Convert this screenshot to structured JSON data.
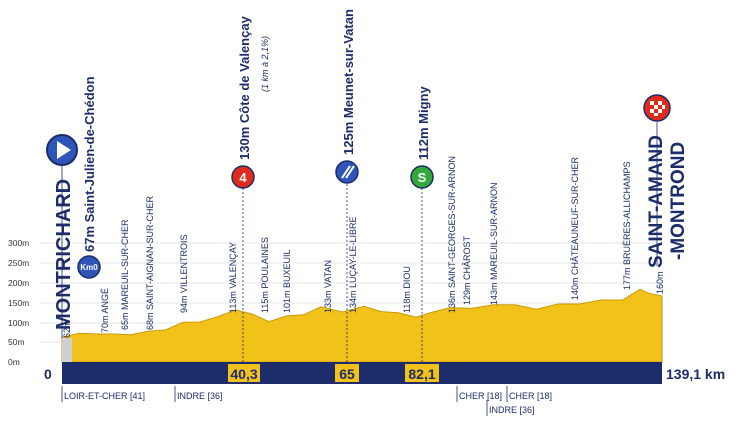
{
  "altitude_axis": [
    "300m",
    "250m",
    "200m",
    "150m",
    "100m",
    "50m",
    "0m"
  ],
  "start": {
    "name": "MONTRICHARD",
    "altitude": "62m",
    "km": "0"
  },
  "finish": {
    "name_line1": "SAINT-AMAND",
    "name_line2": "-MONTROND",
    "altitude": "160m",
    "km": "139,1 km"
  },
  "km0": {
    "badge": "Km0",
    "label": "67m Saint-Julien-de-Chédon"
  },
  "climb": {
    "badge": "4",
    "name": "130m Côte de Valençay",
    "detail": "(1 km à 2,1%)",
    "km": "40,3"
  },
  "sprint_cross": {
    "name": "125m Meunet-sur-Vatan",
    "km": "65"
  },
  "sprint_s": {
    "badge": "S",
    "name": "112m Migny",
    "km": "82,1"
  },
  "places": [
    "70m ANGÉ",
    "65m MAREUIL-SUR-CHER",
    "68m SAINT-AIGNAN-SUR-CHER",
    "94m VILLENTROIS",
    "113m VALENÇAY",
    "115m POULAINES",
    "101m BUXEUIL",
    "133m VATAN",
    "134m LUÇAY-LE-LIBRE",
    "118m DIOU",
    "136m SAINT-GEORGES-SUR-ARNON",
    "129m CHÂROST",
    "143m MAREUIL-SUR-ARNON",
    "140m CHÂTEAUNEUF-SUR-CHER",
    "177m BRUÈRES-ALLICHAMPS"
  ],
  "departments": [
    "LOIR-ET-CHER [41]",
    "INDRE [36]",
    "CHER [18]",
    "CHER [18]",
    "INDRE [36]"
  ],
  "colors": {
    "navy": "#1d2c6b",
    "profile": "#f2c21a",
    "profile_dark": "#c79a0a",
    "climb_red": "#e02a1b",
    "sprint_green": "#35a83a",
    "start_blue": "#2e55b8"
  },
  "profile": {
    "km": [
      0,
      4,
      8,
      12,
      16,
      20,
      24,
      28,
      32,
      36,
      40.3,
      44,
      48,
      52,
      56,
      60,
      65,
      70,
      74,
      78,
      82.1,
      86,
      90,
      95,
      100,
      105,
      110,
      115,
      120,
      125,
      130,
      134,
      136,
      139.1
    ],
    "alt": [
      62,
      67,
      70,
      65,
      68,
      72,
      80,
      94,
      100,
      108,
      130,
      115,
      101,
      110,
      118,
      133,
      125,
      134,
      126,
      118,
      112,
      120,
      136,
      129,
      143,
      138,
      132,
      140,
      145,
      150,
      155,
      177,
      172,
      160
    ]
  }
}
